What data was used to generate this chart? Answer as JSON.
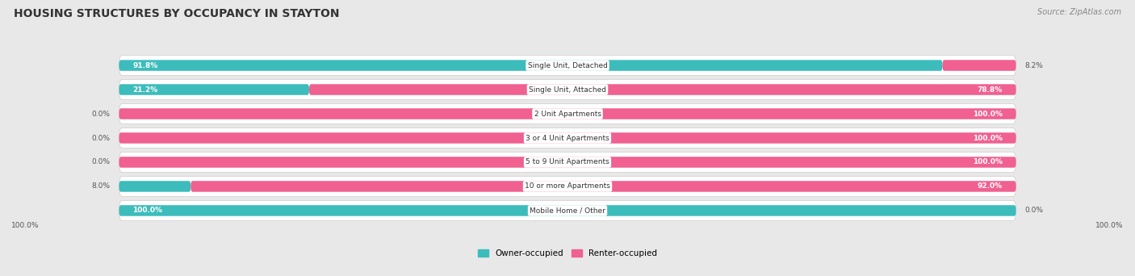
{
  "title": "HOUSING STRUCTURES BY OCCUPANCY IN STAYTON",
  "source": "Source: ZipAtlas.com",
  "categories": [
    "Single Unit, Detached",
    "Single Unit, Attached",
    "2 Unit Apartments",
    "3 or 4 Unit Apartments",
    "5 to 9 Unit Apartments",
    "10 or more Apartments",
    "Mobile Home / Other"
  ],
  "owner_pct": [
    91.8,
    21.2,
    0.0,
    0.0,
    0.0,
    8.0,
    100.0
  ],
  "renter_pct": [
    8.2,
    78.8,
    100.0,
    100.0,
    100.0,
    92.0,
    0.0
  ],
  "owner_color": "#3DBCBC",
  "renter_color": "#F06090",
  "renter_color_light": "#F5A8C8",
  "owner_color_light": "#A8DEDE",
  "bg_color": "#E8E8E8",
  "row_bg_color": "#F5F5F5",
  "bar_bg_color": "#FFFFFF",
  "title_color": "#333333",
  "label_color": "#555555",
  "figsize": [
    14.06,
    3.42
  ],
  "dpi": 100
}
